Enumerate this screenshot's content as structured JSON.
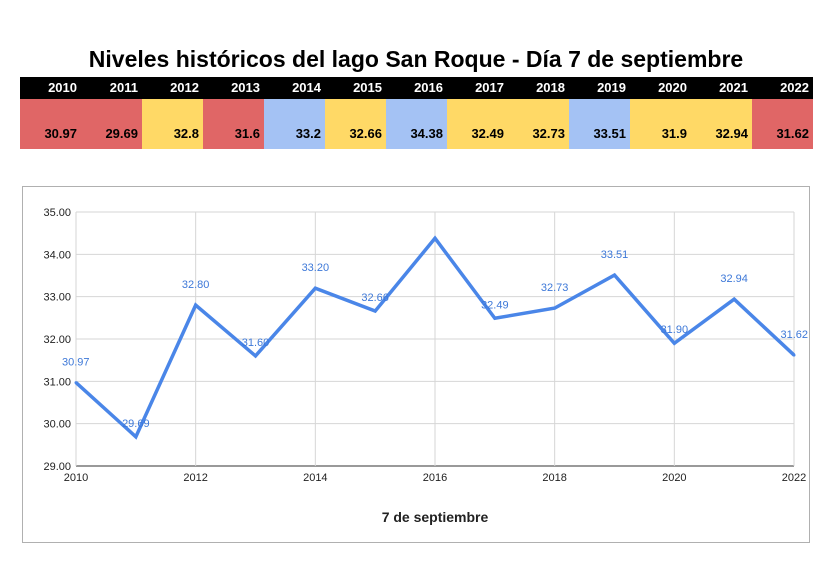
{
  "page": {
    "title": "Niveles históricos del lago San Roque - Día 7 de septiembre"
  },
  "table": {
    "header_bg": "#000000",
    "level_colors": {
      "low": "#e06666",
      "mid": "#ffd966",
      "high": "#a4c2f4"
    },
    "columns": [
      {
        "year": "2010",
        "value": "30.97",
        "level": "low"
      },
      {
        "year": "2011",
        "value": "29.69",
        "level": "low"
      },
      {
        "year": "2012",
        "value": "32.8",
        "level": "mid"
      },
      {
        "year": "2013",
        "value": "31.6",
        "level": "low"
      },
      {
        "year": "2014",
        "value": "33.2",
        "level": "high"
      },
      {
        "year": "2015",
        "value": "32.66",
        "level": "mid"
      },
      {
        "year": "2016",
        "value": "34.38",
        "level": "high"
      },
      {
        "year": "2017",
        "value": "32.49",
        "level": "mid"
      },
      {
        "year": "2018",
        "value": "32.73",
        "level": "mid"
      },
      {
        "year": "2019",
        "value": "33.51",
        "level": "high"
      },
      {
        "year": "2020",
        "value": "31.9",
        "level": "mid"
      },
      {
        "year": "2021",
        "value": "32.94",
        "level": "mid"
      },
      {
        "year": "2022",
        "value": "31.62",
        "level": "low"
      }
    ]
  },
  "chart_data": {
    "type": "line",
    "title": "",
    "xlabel": "7 de septiembre",
    "ylabel": "",
    "x": [
      2010,
      2011,
      2012,
      2013,
      2014,
      2015,
      2016,
      2017,
      2018,
      2019,
      2020,
      2021,
      2022
    ],
    "series": [
      {
        "values": [
          30.97,
          29.69,
          32.8,
          31.6,
          33.2,
          32.66,
          34.38,
          32.49,
          32.73,
          33.51,
          31.9,
          32.94,
          31.62
        ]
      }
    ],
    "data_labels": [
      "30.97",
      "29.69",
      "32.80",
      "31.60",
      "33.20",
      "32.66",
      "",
      "32.49",
      "32.73",
      "33.51",
      "31.90",
      "32.94",
      "31.62"
    ],
    "ylim": [
      29,
      35
    ],
    "xlim": [
      2010,
      2022
    ],
    "y_ticks": [
      "29.00",
      "30.00",
      "31.00",
      "32.00",
      "33.00",
      "34.00",
      "35.00"
    ],
    "x_ticks": [
      "2010",
      "2012",
      "2014",
      "2016",
      "2018",
      "2020",
      "2022"
    ],
    "line_color": "#4a86e8",
    "grid": true,
    "legend": "none"
  }
}
